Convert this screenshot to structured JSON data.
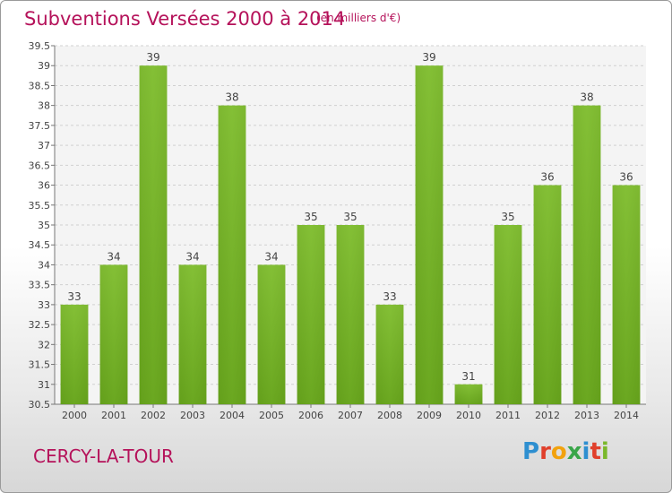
{
  "chart_data": {
    "type": "bar",
    "title": "Subventions Versées 2000 à 2014",
    "unit": "(en milliers d'€)",
    "categories": [
      "2000",
      "2001",
      "2002",
      "2003",
      "2004",
      "2005",
      "2006",
      "2007",
      "2008",
      "2009",
      "2010",
      "2011",
      "2012",
      "2013",
      "2014"
    ],
    "values": [
      33,
      34,
      39,
      34,
      38,
      34,
      35,
      35,
      33,
      39,
      31,
      35,
      36,
      38,
      36
    ],
    "ylim": [
      30.5,
      39.5
    ],
    "yticks": [
      "30.5",
      "31",
      "31.5",
      "32",
      "32.5",
      "33",
      "33.5",
      "34",
      "34.5",
      "35",
      "35.5",
      "36",
      "36.5",
      "37",
      "37.5",
      "38",
      "38.5",
      "39",
      "39.5"
    ],
    "grid": true,
    "bar_color": "#7ab82b"
  },
  "location": "CERCY-LA-TOUR",
  "logo": {
    "text": "Proxiti",
    "colors": [
      "#2e8fd0",
      "#e0402c",
      "#f2a20e",
      "#3aa64a",
      "#2e8fd0",
      "#e0402c",
      "#7ab82b"
    ]
  },
  "colors": {
    "accent": "#b5125a"
  }
}
